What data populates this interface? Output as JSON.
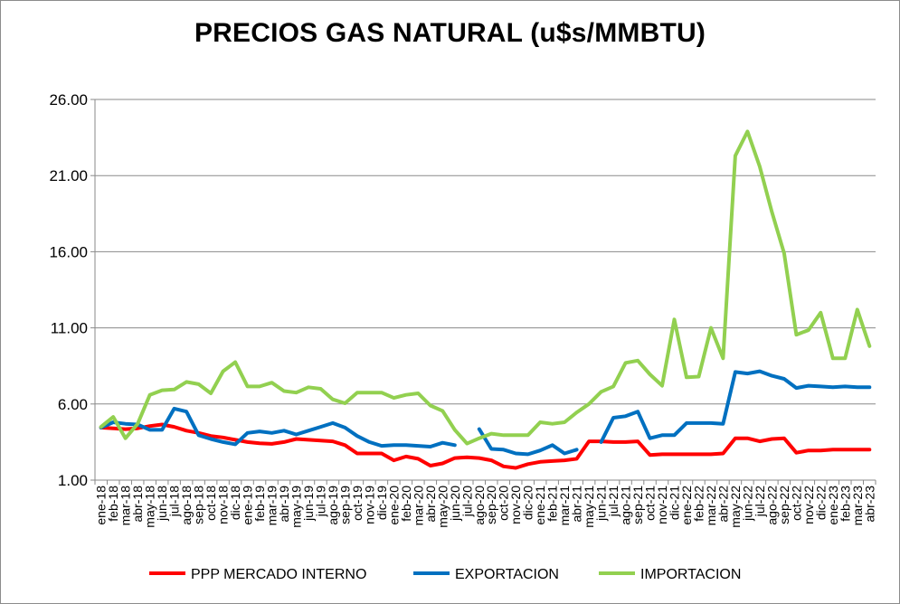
{
  "chart_data": {
    "type": "line",
    "title": "PRECIOS GAS NATURAL (u$s/MMBTU)",
    "xlabel": "",
    "ylabel": "",
    "ylim": [
      1.0,
      26.0
    ],
    "yticks": [
      "1.00",
      "6.00",
      "11.00",
      "16.00",
      "21.00",
      "26.00"
    ],
    "ytick_values": [
      1,
      6,
      11,
      16,
      21,
      26
    ],
    "grid": "horizontal",
    "legend_position": "bottom",
    "categories": [
      "ene-18",
      "feb-18",
      "mar-18",
      "abr-18",
      "may-18",
      "jun-18",
      "jul-18",
      "ago-18",
      "sep-18",
      "oct-18",
      "nov-18",
      "dic-18",
      "ene-19",
      "feb-19",
      "mar-19",
      "abr-19",
      "may-19",
      "jun-19",
      "jul-19",
      "ago-19",
      "sep-19",
      "oct-19",
      "nov-19",
      "dic-19",
      "ene-20",
      "feb-20",
      "mar-20",
      "abr-20",
      "may-20",
      "jun-20",
      "jul-20",
      "ago-20",
      "sep-20",
      "oct-20",
      "nov-20",
      "dic-20",
      "ene-21",
      "feb-21",
      "mar-21",
      "abr-21",
      "may-21",
      "jun-21",
      "jul-21",
      "ago-21",
      "sep-21",
      "oct-21",
      "nov-21",
      "dic-21",
      "ene-22",
      "feb-22",
      "mar-22",
      "abr-22",
      "may-22",
      "jun-22",
      "jul-22",
      "ago-22",
      "sep-22",
      "oct-22",
      "nov-22",
      "dic-22",
      "ene-23",
      "feb-23",
      "mar-23",
      "abr-23"
    ],
    "series": [
      {
        "name": "PPP MERCADO INTERNO",
        "color": "#ff0000",
        "values": [
          4.45,
          4.4,
          4.35,
          4.4,
          4.55,
          4.65,
          4.5,
          4.25,
          4.1,
          3.9,
          3.8,
          3.65,
          3.5,
          3.42,
          3.38,
          3.5,
          3.7,
          3.65,
          3.6,
          3.55,
          3.3,
          2.75,
          2.75,
          2.75,
          2.3,
          2.55,
          2.4,
          1.95,
          2.1,
          2.45,
          2.5,
          2.45,
          2.3,
          1.9,
          1.8,
          2.05,
          2.2,
          2.25,
          2.3,
          2.4,
          3.55,
          3.55,
          3.5,
          3.5,
          3.55,
          2.65,
          2.7,
          2.7,
          2.7,
          2.7,
          2.7,
          2.75,
          3.75,
          3.75,
          3.55,
          3.7,
          3.75,
          2.8,
          2.95,
          2.95,
          3.0,
          3.0,
          3.0,
          3.0
        ]
      },
      {
        "name": "EXPORTACION",
        "color": "#0070c0",
        "values": [
          4.45,
          4.8,
          4.7,
          4.65,
          4.3,
          4.3,
          5.7,
          5.5,
          3.95,
          3.7,
          3.5,
          3.35,
          4.1,
          4.2,
          4.1,
          4.25,
          4.0,
          4.25,
          4.5,
          4.75,
          4.45,
          3.9,
          3.5,
          3.25,
          3.3,
          3.3,
          3.25,
          3.2,
          3.45,
          3.3,
          null,
          4.35,
          3.05,
          3.0,
          2.75,
          2.7,
          2.95,
          3.3,
          2.75,
          3.0,
          null,
          3.5,
          5.1,
          5.2,
          5.5,
          3.75,
          3.95,
          3.95,
          4.75,
          4.75,
          4.75,
          4.7,
          8.1,
          8.0,
          8.15,
          7.85,
          7.65,
          7.05,
          7.2,
          7.15,
          7.1,
          7.15,
          7.1,
          7.1
        ]
      },
      {
        "name": "IMPORTACION",
        "color": "#92d050",
        "values": [
          4.5,
          5.15,
          3.75,
          4.7,
          6.6,
          6.9,
          6.95,
          7.45,
          7.3,
          6.7,
          8.15,
          8.75,
          7.15,
          7.15,
          7.4,
          6.85,
          6.75,
          7.1,
          7.0,
          6.3,
          6.05,
          6.75,
          6.75,
          6.75,
          6.4,
          6.6,
          6.7,
          5.9,
          5.55,
          4.3,
          3.4,
          3.75,
          4.05,
          3.95,
          3.95,
          3.95,
          4.8,
          4.7,
          4.8,
          5.45,
          6.0,
          6.8,
          7.15,
          8.7,
          8.85,
          7.95,
          7.2,
          11.55,
          7.75,
          7.8,
          11.0,
          9.0,
          22.3,
          23.9,
          21.6,
          18.6,
          15.9,
          10.55,
          10.85,
          12.0,
          9.0,
          9.0,
          12.2,
          9.8
        ]
      }
    ]
  }
}
